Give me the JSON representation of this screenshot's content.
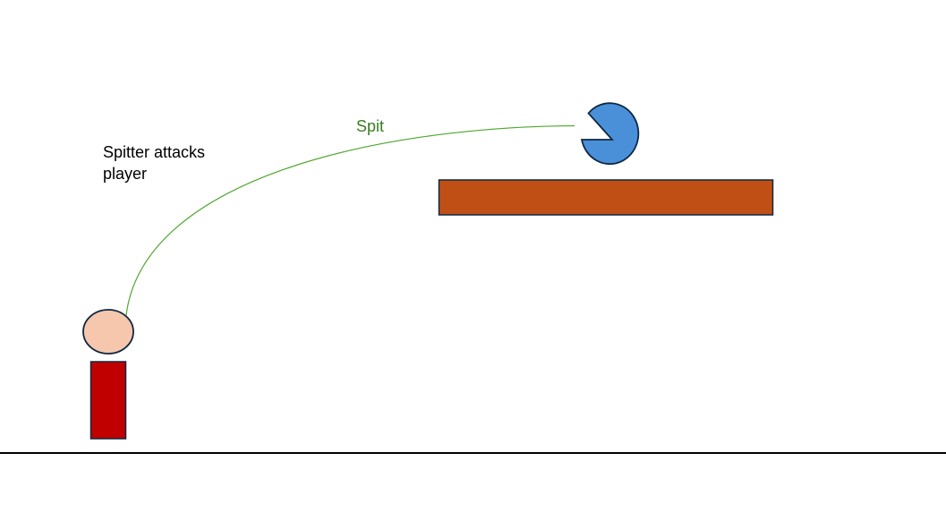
{
  "caption": "Spitter attacks\nplayer",
  "spit_label": "Spit",
  "colors": {
    "ground": "#000000",
    "outline": "#0e2841",
    "player_head": "#f6c7ad",
    "player_body": "#c00000",
    "spitter": "#4a90d9",
    "platform": "#c04f15",
    "spit": "#4ea72e",
    "spit_label": "#3a7d22"
  }
}
